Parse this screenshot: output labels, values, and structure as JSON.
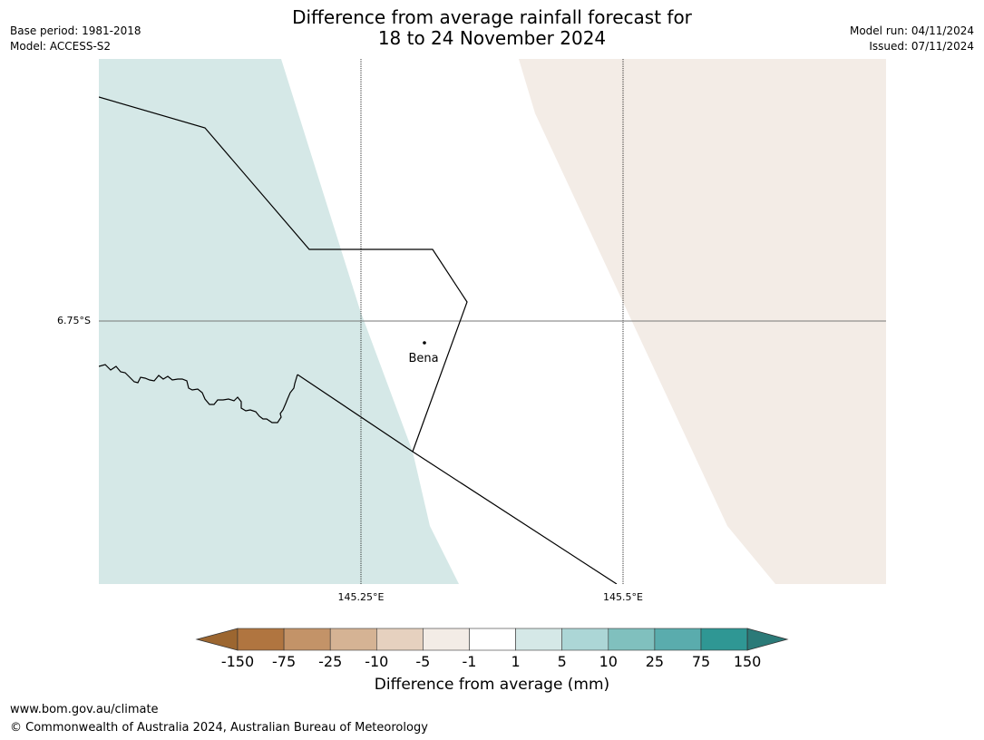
{
  "title_line1": "Difference from average rainfall forecast for",
  "title_line2": "18 to 24 November 2024",
  "base_period": "Base period: 1981-2018",
  "model": "Model: ACCESS-S2",
  "model_run": "Model run: 04/11/2024",
  "issued": "Issued: 07/11/2024",
  "map": {
    "lat_label": "6.75°S",
    "lon_labels": [
      "145.25°E",
      "145.5°E"
    ],
    "place_label": "Bena"
  },
  "colorbar": {
    "title": "Difference from average (mm)",
    "ticks": [
      "-150",
      "-75",
      "-25",
      "-10",
      "-5",
      "-1",
      "1",
      "5",
      "10",
      "25",
      "75",
      "150"
    ],
    "colors": [
      "#9c6630",
      "#b07540",
      "#c39368",
      "#d5b394",
      "#e6d1bf",
      "#f3ece6",
      "#ffffff",
      "#d5e8e7",
      "#acd6d6",
      "#80c0be",
      "#5aacad",
      "#2f9794",
      "#2b7a78"
    ]
  },
  "footer_url": "www.bom.gov.au/climate",
  "footer_copyright": "© Commonwealth of Australia 2024, Australian Bureau of Meteorology"
}
